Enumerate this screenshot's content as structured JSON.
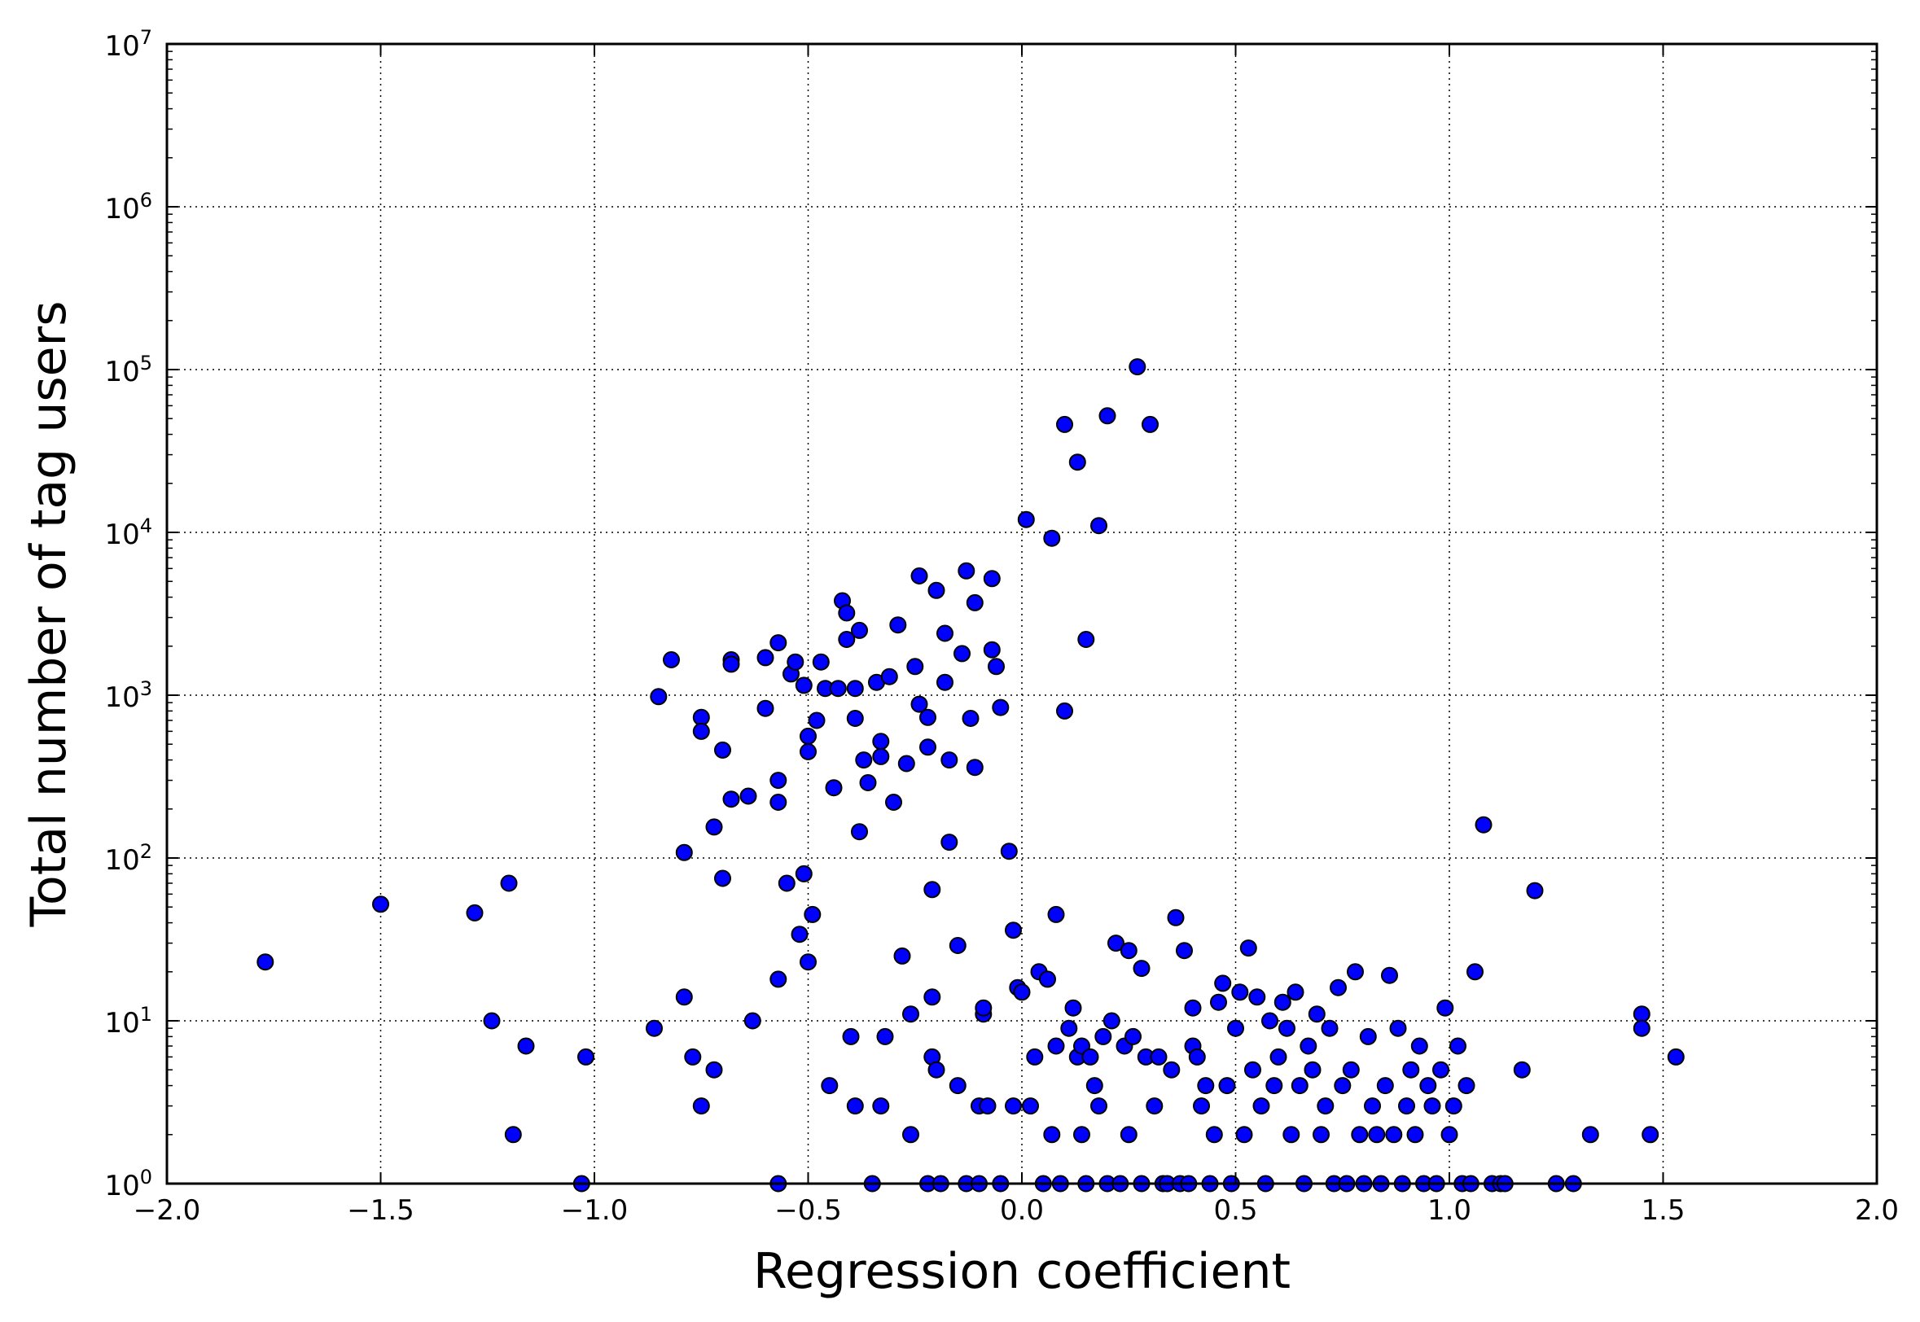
{
  "chart_data": {
    "type": "scatter",
    "title": "",
    "xlabel": "Regression coefficient",
    "ylabel": "Total number of tag users",
    "xlim": [
      -2.0,
      2.0
    ],
    "ylim": [
      1,
      10000000
    ],
    "yscale": "log",
    "grid": true,
    "marker_color": "#0000ff",
    "marker_edge_color": "#000000",
    "x_ticks": [
      {
        "value": -2.0,
        "label": "−2.0"
      },
      {
        "value": -1.5,
        "label": "−1.5"
      },
      {
        "value": -1.0,
        "label": "−1.0"
      },
      {
        "value": -0.5,
        "label": "−0.5"
      },
      {
        "value": 0.0,
        "label": "0.0"
      },
      {
        "value": 0.5,
        "label": "0.5"
      },
      {
        "value": 1.0,
        "label": "1.0"
      },
      {
        "value": 1.5,
        "label": "1.5"
      },
      {
        "value": 2.0,
        "label": "2.0"
      }
    ],
    "y_ticks": [
      {
        "value": 1,
        "base": "10",
        "exp": "0"
      },
      {
        "value": 10,
        "base": "10",
        "exp": "1"
      },
      {
        "value": 100,
        "base": "10",
        "exp": "2"
      },
      {
        "value": 1000,
        "base": "10",
        "exp": "3"
      },
      {
        "value": 10000,
        "base": "10",
        "exp": "4"
      },
      {
        "value": 100000,
        "base": "10",
        "exp": "5"
      },
      {
        "value": 1000000,
        "base": "10",
        "exp": "6"
      },
      {
        "value": 10000000,
        "base": "10",
        "exp": "7"
      }
    ],
    "points": [
      [
        -1.77,
        23
      ],
      [
        -1.5,
        52
      ],
      [
        -1.28,
        46
      ],
      [
        -1.24,
        10
      ],
      [
        -1.2,
        70
      ],
      [
        -1.19,
        2
      ],
      [
        -1.16,
        7
      ],
      [
        -1.03,
        1
      ],
      [
        -1.02,
        6
      ],
      [
        -0.86,
        9
      ],
      [
        -0.85,
        980
      ],
      [
        -0.82,
        1650
      ],
      [
        -0.79,
        14
      ],
      [
        -0.79,
        108
      ],
      [
        -0.77,
        6
      ],
      [
        -0.75,
        3
      ],
      [
        -0.75,
        730
      ],
      [
        -0.75,
        600
      ],
      [
        -0.72,
        5
      ],
      [
        -0.72,
        155
      ],
      [
        -0.7,
        460
      ],
      [
        -0.7,
        75
      ],
      [
        -0.68,
        230
      ],
      [
        -0.68,
        1650
      ],
      [
        -0.68,
        1550
      ],
      [
        -0.64,
        240
      ],
      [
        -0.63,
        10
      ],
      [
        -0.6,
        830
      ],
      [
        -0.6,
        1700
      ],
      [
        -0.57,
        2100
      ],
      [
        -0.57,
        300
      ],
      [
        -0.57,
        220
      ],
      [
        -0.57,
        18
      ],
      [
        -0.57,
        1
      ],
      [
        -0.55,
        70
      ],
      [
        -0.54,
        1350
      ],
      [
        -0.53,
        1600
      ],
      [
        -0.52,
        34
      ],
      [
        -0.51,
        80
      ],
      [
        -0.51,
        1150
      ],
      [
        -0.5,
        23
      ],
      [
        -0.5,
        560
      ],
      [
        -0.5,
        450
      ],
      [
        -0.49,
        45
      ],
      [
        -0.48,
        700
      ],
      [
        -0.47,
        1600
      ],
      [
        -0.46,
        1100
      ],
      [
        -0.45,
        4
      ],
      [
        -0.43,
        1100
      ],
      [
        -0.44,
        270
      ],
      [
        -0.42,
        3800
      ],
      [
        -0.41,
        3200
      ],
      [
        -0.41,
        2200
      ],
      [
        -0.4,
        8
      ],
      [
        -0.39,
        3
      ],
      [
        -0.39,
        1100
      ],
      [
        -0.39,
        720
      ],
      [
        -0.38,
        2500
      ],
      [
        -0.38,
        145
      ],
      [
        -0.37,
        400
      ],
      [
        -0.36,
        290
      ],
      [
        -0.35,
        1
      ],
      [
        -0.34,
        1200
      ],
      [
        -0.33,
        520
      ],
      [
        -0.33,
        420
      ],
      [
        -0.33,
        3
      ],
      [
        -0.32,
        8
      ],
      [
        -0.31,
        1300
      ],
      [
        -0.3,
        220
      ],
      [
        -0.29,
        2700
      ],
      [
        -0.28,
        25
      ],
      [
        -0.27,
        380
      ],
      [
        -0.26,
        2
      ],
      [
        -0.26,
        11
      ],
      [
        -0.25,
        1500
      ],
      [
        -0.24,
        5400
      ],
      [
        -0.24,
        880
      ],
      [
        -0.22,
        730
      ],
      [
        -0.22,
        480
      ],
      [
        -0.22,
        1
      ],
      [
        -0.21,
        64
      ],
      [
        -0.21,
        14
      ],
      [
        -0.21,
        6
      ],
      [
        -0.2,
        5
      ],
      [
        -0.19,
        1
      ],
      [
        -0.2,
        4400
      ],
      [
        -0.18,
        2400
      ],
      [
        -0.18,
        1200
      ],
      [
        -0.17,
        400
      ],
      [
        -0.17,
        125
      ],
      [
        -0.15,
        29
      ],
      [
        -0.15,
        4
      ],
      [
        -0.14,
        1800
      ],
      [
        -0.13,
        5800
      ],
      [
        -0.13,
        1
      ],
      [
        -0.12,
        720
      ],
      [
        -0.11,
        3700
      ],
      [
        -0.11,
        360
      ],
      [
        -0.1,
        3
      ],
      [
        -0.1,
        1
      ],
      [
        -0.09,
        11
      ],
      [
        -0.09,
        12
      ],
      [
        -0.08,
        3
      ],
      [
        -0.07,
        5200
      ],
      [
        -0.07,
        1900
      ],
      [
        -0.06,
        1500
      ],
      [
        -0.05,
        840
      ],
      [
        -0.05,
        1
      ],
      [
        -0.03,
        110
      ],
      [
        -0.02,
        3
      ],
      [
        -0.02,
        36
      ],
      [
        -0.01,
        16
      ],
      [
        0.0,
        15
      ],
      [
        0.01,
        12000
      ],
      [
        0.02,
        3
      ],
      [
        0.03,
        6
      ],
      [
        0.04,
        20
      ],
      [
        0.05,
        1
      ],
      [
        0.06,
        18
      ],
      [
        0.07,
        9200
      ],
      [
        0.07,
        2
      ],
      [
        0.08,
        7
      ],
      [
        0.08,
        45
      ],
      [
        0.09,
        1
      ],
      [
        0.1,
        46000
      ],
      [
        0.1,
        800
      ],
      [
        0.11,
        9
      ],
      [
        0.12,
        12
      ],
      [
        0.13,
        27000
      ],
      [
        0.13,
        6
      ],
      [
        0.14,
        2
      ],
      [
        0.14,
        7
      ],
      [
        0.15,
        2200
      ],
      [
        0.15,
        1
      ],
      [
        0.16,
        6
      ],
      [
        0.17,
        4
      ],
      [
        0.18,
        11000
      ],
      [
        0.18,
        3
      ],
      [
        0.19,
        8
      ],
      [
        0.2,
        52000
      ],
      [
        0.2,
        1
      ],
      [
        0.21,
        10
      ],
      [
        0.22,
        30
      ],
      [
        0.23,
        1
      ],
      [
        0.24,
        7
      ],
      [
        0.25,
        27
      ],
      [
        0.25,
        2
      ],
      [
        0.26,
        8
      ],
      [
        0.27,
        104000
      ],
      [
        0.28,
        21
      ],
      [
        0.28,
        1
      ],
      [
        0.29,
        6
      ],
      [
        0.3,
        46000
      ],
      [
        0.31,
        3
      ],
      [
        0.32,
        6
      ],
      [
        0.33,
        1
      ],
      [
        0.34,
        1
      ],
      [
        0.35,
        5
      ],
      [
        0.36,
        43
      ],
      [
        0.37,
        1
      ],
      [
        0.38,
        27
      ],
      [
        0.39,
        1
      ],
      [
        0.4,
        12
      ],
      [
        0.4,
        7
      ],
      [
        0.41,
        6
      ],
      [
        0.42,
        3
      ],
      [
        0.43,
        4
      ],
      [
        0.44,
        1
      ],
      [
        0.45,
        2
      ],
      [
        0.46,
        13
      ],
      [
        0.47,
        17
      ],
      [
        0.48,
        4
      ],
      [
        0.49,
        1
      ],
      [
        0.5,
        9
      ],
      [
        0.51,
        15
      ],
      [
        0.52,
        2
      ],
      [
        0.53,
        28
      ],
      [
        0.54,
        5
      ],
      [
        0.55,
        14
      ],
      [
        0.56,
        3
      ],
      [
        0.57,
        1
      ],
      [
        0.58,
        10
      ],
      [
        0.59,
        4
      ],
      [
        0.6,
        6
      ],
      [
        0.61,
        13
      ],
      [
        0.62,
        9
      ],
      [
        0.63,
        2
      ],
      [
        0.64,
        15
      ],
      [
        0.65,
        4
      ],
      [
        0.66,
        1
      ],
      [
        0.67,
        7
      ],
      [
        0.68,
        5
      ],
      [
        0.69,
        11
      ],
      [
        0.7,
        2
      ],
      [
        0.71,
        3
      ],
      [
        0.72,
        9
      ],
      [
        0.73,
        1
      ],
      [
        0.74,
        16
      ],
      [
        0.75,
        4
      ],
      [
        0.76,
        1
      ],
      [
        0.77,
        5
      ],
      [
        0.78,
        20
      ],
      [
        0.79,
        2
      ],
      [
        0.8,
        1
      ],
      [
        0.81,
        8
      ],
      [
        0.82,
        3
      ],
      [
        0.83,
        2
      ],
      [
        0.84,
        1
      ],
      [
        0.85,
        4
      ],
      [
        0.86,
        19
      ],
      [
        0.87,
        2
      ],
      [
        0.88,
        9
      ],
      [
        0.89,
        1
      ],
      [
        0.9,
        3
      ],
      [
        0.91,
        5
      ],
      [
        0.92,
        2
      ],
      [
        0.93,
        7
      ],
      [
        0.94,
        1
      ],
      [
        0.95,
        4
      ],
      [
        0.96,
        3
      ],
      [
        0.97,
        1
      ],
      [
        0.98,
        5
      ],
      [
        0.99,
        12
      ],
      [
        1.0,
        2
      ],
      [
        1.01,
        3
      ],
      [
        1.02,
        7
      ],
      [
        1.03,
        1
      ],
      [
        1.04,
        4
      ],
      [
        1.05,
        1
      ],
      [
        1.06,
        20
      ],
      [
        1.08,
        160
      ],
      [
        1.1,
        1
      ],
      [
        1.12,
        1
      ],
      [
        1.13,
        1
      ],
      [
        1.17,
        5
      ],
      [
        1.2,
        63
      ],
      [
        1.25,
        1
      ],
      [
        1.29,
        1
      ],
      [
        1.33,
        2
      ],
      [
        1.45,
        11
      ],
      [
        1.45,
        9
      ],
      [
        1.47,
        2
      ],
      [
        1.53,
        6
      ]
    ]
  }
}
